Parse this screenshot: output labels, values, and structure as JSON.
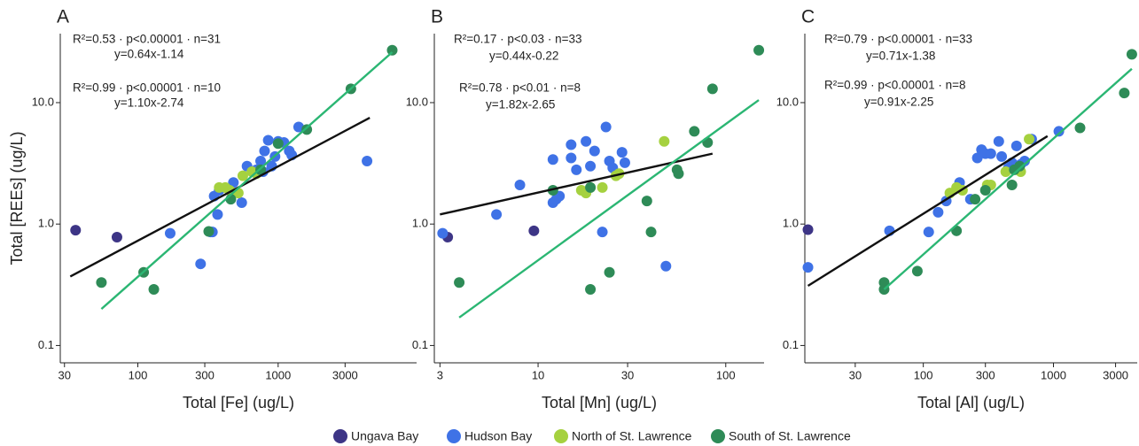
{
  "chart_data": [
    {
      "type": "scatter",
      "panel_label": "A",
      "x_label": "Total [Fe] (ug/L)",
      "y_label": "Total [REEs] (ug/L)",
      "log_x": true,
      "log_y": true,
      "xlim": [
        28,
        9700
      ],
      "ylim": [
        0.072,
        37
      ],
      "xticks": [
        30,
        100,
        300,
        1000,
        3000
      ],
      "yticks": [
        0.1,
        {
          "value": 1,
          "label": "1.0"
        },
        {
          "value": 10,
          "label": "10.0"
        }
      ],
      "annotations": [
        {
          "text": "R²=0.53 · p<0.00001 · n=31",
          "color": "#111111"
        },
        {
          "text": "y=0.64x-1.14",
          "color": "#111111"
        },
        {
          "text": "R²=0.99 · p<0.00001 · n=10",
          "color": "#2a9a2a"
        },
        {
          "text": "y=1.10x-2.74",
          "color": "#2a9a2a"
        }
      ],
      "fits": [
        {
          "color": "#111111",
          "x": [
            33,
            4500
          ],
          "y": [
            0.37,
            7.5
          ]
        },
        {
          "color": "#2bb673",
          "x": [
            55,
            6500
          ],
          "y": [
            0.2,
            26
          ]
        }
      ],
      "series": [
        {
          "name": "Ungava Bay",
          "color": "#3d3586",
          "x": [
            36,
            71
          ],
          "y": [
            0.89,
            0.78
          ]
        },
        {
          "name": "Hudson Bay",
          "color": "#3f72e6",
          "x": [
            170,
            280,
            330,
            340,
            350,
            370,
            380,
            480,
            550,
            600,
            700,
            750,
            800,
            850,
            900,
            950,
            1100,
            1200,
            1250,
            1400,
            4300,
            1000,
            780
          ],
          "y": [
            0.84,
            0.47,
            0.86,
            0.86,
            1.7,
            1.2,
            1.9,
            2.2,
            1.5,
            3.0,
            2.8,
            3.3,
            4.0,
            4.9,
            3.0,
            3.6,
            4.7,
            4.0,
            3.7,
            6.3,
            3.3,
            4.8,
            2.7
          ]
        },
        {
          "name": "North of St. Lawrence",
          "color": "#a5d13f",
          "x": [
            380,
            420,
            450,
            480,
            520,
            560,
            650,
            700
          ],
          "y": [
            2.0,
            2.0,
            1.9,
            1.8,
            1.8,
            2.5,
            2.7,
            2.6
          ]
        },
        {
          "name": "South of St. Lawrence",
          "color": "#2e8b57",
          "x": [
            55,
            110,
            130,
            320,
            460,
            1000,
            1600,
            3300,
            6500,
            750
          ],
          "y": [
            0.33,
            0.4,
            0.29,
            0.87,
            1.6,
            4.6,
            6.0,
            13,
            27,
            2.8
          ]
        }
      ]
    },
    {
      "type": "scatter",
      "panel_label": "B",
      "x_label": "Total [Mn] (ug/L)",
      "log_x": true,
      "log_y": true,
      "xlim": [
        2.8,
        160
      ],
      "ylim": [
        0.072,
        37
      ],
      "xticks": [
        3,
        10,
        30,
        100
      ],
      "yticks": [
        0.1,
        {
          "value": 1,
          "label": "1.0"
        },
        {
          "value": 10,
          "label": "10.0"
        }
      ],
      "annotations": [
        {
          "text": "R²=0.17 · p<0.03 · n=33",
          "color": "#111111"
        },
        {
          "text": "y=0.44x-0.22",
          "color": "#111111"
        },
        {
          "text": "R²=0.78 · p<0.01 · n=8",
          "color": "#2a9a2a"
        },
        {
          "text": "y=1.82x-2.65",
          "color": "#2a9a2a"
        }
      ],
      "fits": [
        {
          "color": "#111111",
          "x": [
            3,
            85
          ],
          "y": [
            1.2,
            3.8
          ]
        },
        {
          "color": "#2bb673",
          "x": [
            3.8,
            150
          ],
          "y": [
            0.17,
            10.5
          ]
        }
      ],
      "series": [
        {
          "color": "#3d3586",
          "x": [
            3.3,
            9.5
          ],
          "y": [
            0.78,
            0.88
          ]
        },
        {
          "color": "#3f72e6",
          "x": [
            3.1,
            6,
            8,
            12,
            12,
            13,
            15,
            15,
            16,
            18,
            19,
            20,
            22,
            23,
            24,
            25,
            28,
            29,
            48,
            12.5
          ],
          "y": [
            0.84,
            1.2,
            2.1,
            1.5,
            3.4,
            1.7,
            4.5,
            3.5,
            2.8,
            4.8,
            3.0,
            4.0,
            0.86,
            6.3,
            3.3,
            2.9,
            3.9,
            3.2,
            0.45,
            1.6
          ]
        },
        {
          "color": "#a5d13f",
          "x": [
            17,
            18,
            19,
            22,
            26,
            27,
            47
          ],
          "y": [
            1.9,
            1.8,
            2.0,
            2.0,
            2.5,
            2.6,
            4.8
          ]
        },
        {
          "color": "#2e8b57",
          "x": [
            3.8,
            12,
            19,
            19,
            24,
            38,
            40,
            55,
            56,
            68,
            80,
            85,
            150
          ],
          "y": [
            0.33,
            1.9,
            0.29,
            2.0,
            0.4,
            1.55,
            0.86,
            2.8,
            2.6,
            5.8,
            4.7,
            13,
            27
          ]
        }
      ]
    },
    {
      "type": "scatter",
      "panel_label": "C",
      "x_label": "Total [Al] (ug/L)",
      "log_x": true,
      "log_y": true,
      "xlim": [
        12.3,
        4400
      ],
      "ylim": [
        0.072,
        37
      ],
      "xticks": [
        30,
        100,
        300,
        1000,
        3000
      ],
      "yticks": [
        0.1,
        {
          "value": 1,
          "label": "1.0"
        },
        {
          "value": 10,
          "label": "10.0"
        }
      ],
      "annotations": [
        {
          "text": "R²=0.79 · p<0.00001 · n=33",
          "color": "#111111"
        },
        {
          "text": "y=0.71x-1.38",
          "color": "#111111"
        },
        {
          "text": "R²=0.99 · p<0.00001 · n=8",
          "color": "#2a9a2a"
        },
        {
          "text": "y=0.91x-2.25",
          "color": "#2a9a2a"
        }
      ],
      "fits": [
        {
          "color": "#111111",
          "x": [
            13,
            900
          ],
          "y": [
            0.31,
            5.3
          ]
        },
        {
          "color": "#2bb673",
          "x": [
            50,
            4000
          ],
          "y": [
            0.29,
            19
          ]
        }
      ],
      "series": [
        {
          "color": "#3d3586",
          "x": [
            13
          ],
          "y": [
            0.9
          ]
        },
        {
          "color": "#3f72e6",
          "x": [
            13,
            55,
            110,
            130,
            150,
            190,
            230,
            260,
            280,
            300,
            330,
            380,
            400,
            450,
            480,
            520,
            560,
            680,
            1100,
            600
          ],
          "y": [
            0.44,
            0.88,
            0.86,
            1.25,
            1.55,
            2.2,
            1.6,
            3.5,
            4.1,
            3.8,
            3.8,
            4.8,
            3.6,
            2.9,
            3.2,
            4.4,
            3.1,
            5.0,
            5.8,
            3.3
          ]
        },
        {
          "color": "#a5d13f",
          "x": [
            160,
            180,
            200,
            310,
            330,
            430,
            560,
            650
          ],
          "y": [
            1.8,
            2.0,
            1.9,
            2.1,
            2.1,
            2.7,
            2.7,
            5.0
          ]
        },
        {
          "color": "#2e8b57",
          "x": [
            50,
            50,
            90,
            180,
            250,
            300,
            480,
            500,
            550,
            1600,
            3500,
            4000
          ],
          "y": [
            0.29,
            0.33,
            0.41,
            0.88,
            1.6,
            1.9,
            2.1,
            2.8,
            3.0,
            6.2,
            12,
            25
          ]
        }
      ]
    }
  ]
}
